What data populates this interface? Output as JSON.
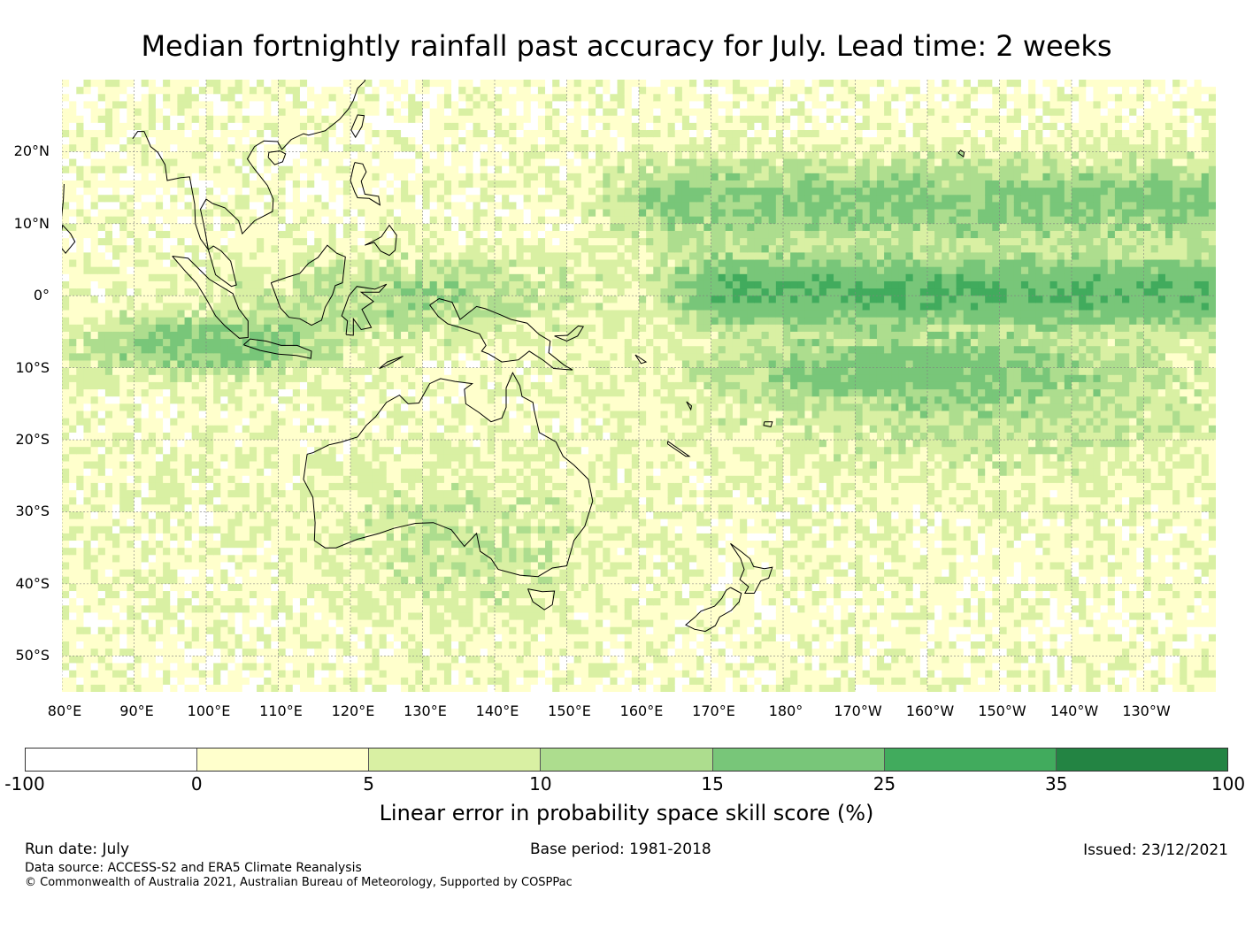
{
  "title": "Median fortnightly rainfall past accuracy for July. Lead time: 2 weeks",
  "map": {
    "extent": {
      "lon_min": 80,
      "lon_max": 240,
      "lat_min": -55,
      "lat_max": 30
    },
    "lat_ticks": [
      {
        "lat": 20,
        "label": "20°N"
      },
      {
        "lat": 10,
        "label": "10°N"
      },
      {
        "lat": 0,
        "label": "0°"
      },
      {
        "lat": -10,
        "label": "10°S"
      },
      {
        "lat": -20,
        "label": "20°S"
      },
      {
        "lat": -30,
        "label": "30°S"
      },
      {
        "lat": -40,
        "label": "40°S"
      },
      {
        "lat": -50,
        "label": "50°S"
      }
    ],
    "lon_ticks": [
      {
        "lon": 80,
        "label": "80°E"
      },
      {
        "lon": 90,
        "label": "90°E"
      },
      {
        "lon": 100,
        "label": "100°E"
      },
      {
        "lon": 110,
        "label": "110°E"
      },
      {
        "lon": 120,
        "label": "120°E"
      },
      {
        "lon": 130,
        "label": "130°E"
      },
      {
        "lon": 140,
        "label": "140°E"
      },
      {
        "lon": 150,
        "label": "150°E"
      },
      {
        "lon": 160,
        "label": "160°E"
      },
      {
        "lon": 170,
        "label": "170°E"
      },
      {
        "lon": 180,
        "label": "180°"
      },
      {
        "lon": 190,
        "label": "170°W"
      },
      {
        "lon": 200,
        "label": "160°W"
      },
      {
        "lon": 210,
        "label": "150°W"
      },
      {
        "lon": 220,
        "label": "140°W"
      },
      {
        "lon": 230,
        "label": "130°W"
      }
    ],
    "gridlines": true
  },
  "colorbar": {
    "label": "Linear error in probability space skill score (%)",
    "ticks": [
      "-100",
      "0",
      "5",
      "10",
      "15",
      "25",
      "35",
      "100"
    ],
    "colors": [
      "#ffffff",
      "#ffffcc",
      "#d9f0a3",
      "#addd8e",
      "#78c679",
      "#41ab5d",
      "#238443"
    ]
  },
  "footer": {
    "run_date": "Run date: July",
    "base_period": "Base period: 1981-2018",
    "issued": "Issued: 23/12/2021",
    "data_source": "Data source: ACCESS-S2 and ERA5 Climate Reanalysis",
    "copyright": "© Commonwealth of Australia 2021, Australian Bureau of Meteorology, Supported by COSPPac"
  }
}
